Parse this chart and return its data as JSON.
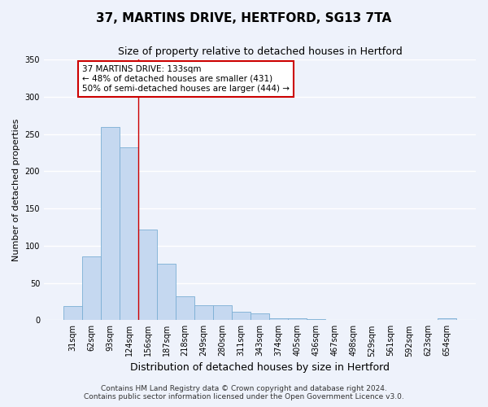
{
  "title": "37, MARTINS DRIVE, HERTFORD, SG13 7TA",
  "subtitle": "Size of property relative to detached houses in Hertford",
  "xlabel": "Distribution of detached houses by size in Hertford",
  "ylabel": "Number of detached properties",
  "bar_categories": [
    "31sqm",
    "62sqm",
    "93sqm",
    "124sqm",
    "156sqm",
    "187sqm",
    "218sqm",
    "249sqm",
    "280sqm",
    "311sqm",
    "343sqm",
    "374sqm",
    "405sqm",
    "436sqm",
    "467sqm",
    "498sqm",
    "529sqm",
    "561sqm",
    "592sqm",
    "623sqm",
    "654sqm"
  ],
  "bar_values": [
    19,
    86,
    259,
    232,
    122,
    76,
    32,
    20,
    20,
    11,
    9,
    3,
    3,
    1,
    0,
    0,
    0,
    0,
    0,
    0,
    2
  ],
  "bar_color": "#c5d8f0",
  "bar_edge_color": "#7bafd4",
  "vline_x": 3.5,
  "vline_color": "#cc0000",
  "annotation_text": "37 MARTINS DRIVE: 133sqm\n← 48% of detached houses are smaller (431)\n50% of semi-detached houses are larger (444) →",
  "annotation_box_edge_color": "#cc0000",
  "annotation_box_face_color": "#ffffff",
  "ylim": [
    0,
    350
  ],
  "yticks": [
    0,
    50,
    100,
    150,
    200,
    250,
    300,
    350
  ],
  "footnote_line1": "Contains HM Land Registry data © Crown copyright and database right 2024.",
  "footnote_line2": "Contains public sector information licensed under the Open Government Licence v3.0.",
  "bg_color": "#eef2fb",
  "grid_color": "#ffffff",
  "title_fontsize": 11,
  "subtitle_fontsize": 9,
  "xlabel_fontsize": 9,
  "ylabel_fontsize": 8,
  "tick_fontsize": 7,
  "annotation_fontsize": 7.5,
  "footnote_fontsize": 6.5
}
